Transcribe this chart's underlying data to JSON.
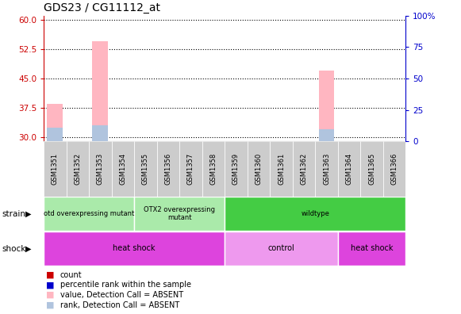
{
  "title": "GDS23 / CG11112_at",
  "samples": [
    "GSM1351",
    "GSM1352",
    "GSM1353",
    "GSM1354",
    "GSM1355",
    "GSM1356",
    "GSM1357",
    "GSM1358",
    "GSM1359",
    "GSM1360",
    "GSM1361",
    "GSM1362",
    "GSM1363",
    "GSM1364",
    "GSM1365",
    "GSM1366"
  ],
  "ylim_left": [
    29,
    61
  ],
  "ylim_right": [
    0,
    100
  ],
  "yticks_left": [
    30,
    37.5,
    45,
    52.5,
    60
  ],
  "yticks_right": [
    0,
    25,
    50,
    75,
    100
  ],
  "ytick_labels_right": [
    "0",
    "25",
    "50",
    "75",
    "100%"
  ],
  "absent_value_bars_idx": [
    0,
    2,
    12
  ],
  "absent_value_bars_val": [
    38.5,
    54.5,
    47.0
  ],
  "absent_rank_bars_idx": [
    0,
    2,
    12
  ],
  "absent_rank_bars_val": [
    32.5,
    33.0,
    32.0
  ],
  "strain_groups": [
    {
      "label": "otd overexpressing mutant",
      "start": 0,
      "end": 3,
      "color": "#AAEAAA"
    },
    {
      "label": "OTX2 overexpressing\nmutant",
      "start": 4,
      "end": 7,
      "color": "#AAEAAA"
    },
    {
      "label": "wildtype",
      "start": 8,
      "end": 15,
      "color": "#44CC44"
    }
  ],
  "shock_groups": [
    {
      "label": "heat shock",
      "start": 0,
      "end": 7,
      "color": "#DD44DD"
    },
    {
      "label": "control",
      "start": 8,
      "end": 12,
      "color": "#EE99EE"
    },
    {
      "label": "heat shock",
      "start": 13,
      "end": 15,
      "color": "#DD44DD"
    }
  ],
  "absent_bar_color": "#FFB6C1",
  "absent_rank_color": "#B0C4DE",
  "left_axis_color": "#CC0000",
  "right_axis_color": "#0000CC",
  "bg_color": "#FFFFFF",
  "sample_bg_color": "#CCCCCC",
  "legend_colors": [
    "#CC0000",
    "#0000CC",
    "#FFB6C1",
    "#B0C4DE"
  ],
  "legend_labels": [
    "count",
    "percentile rank within the sample",
    "value, Detection Call = ABSENT",
    "rank, Detection Call = ABSENT"
  ]
}
